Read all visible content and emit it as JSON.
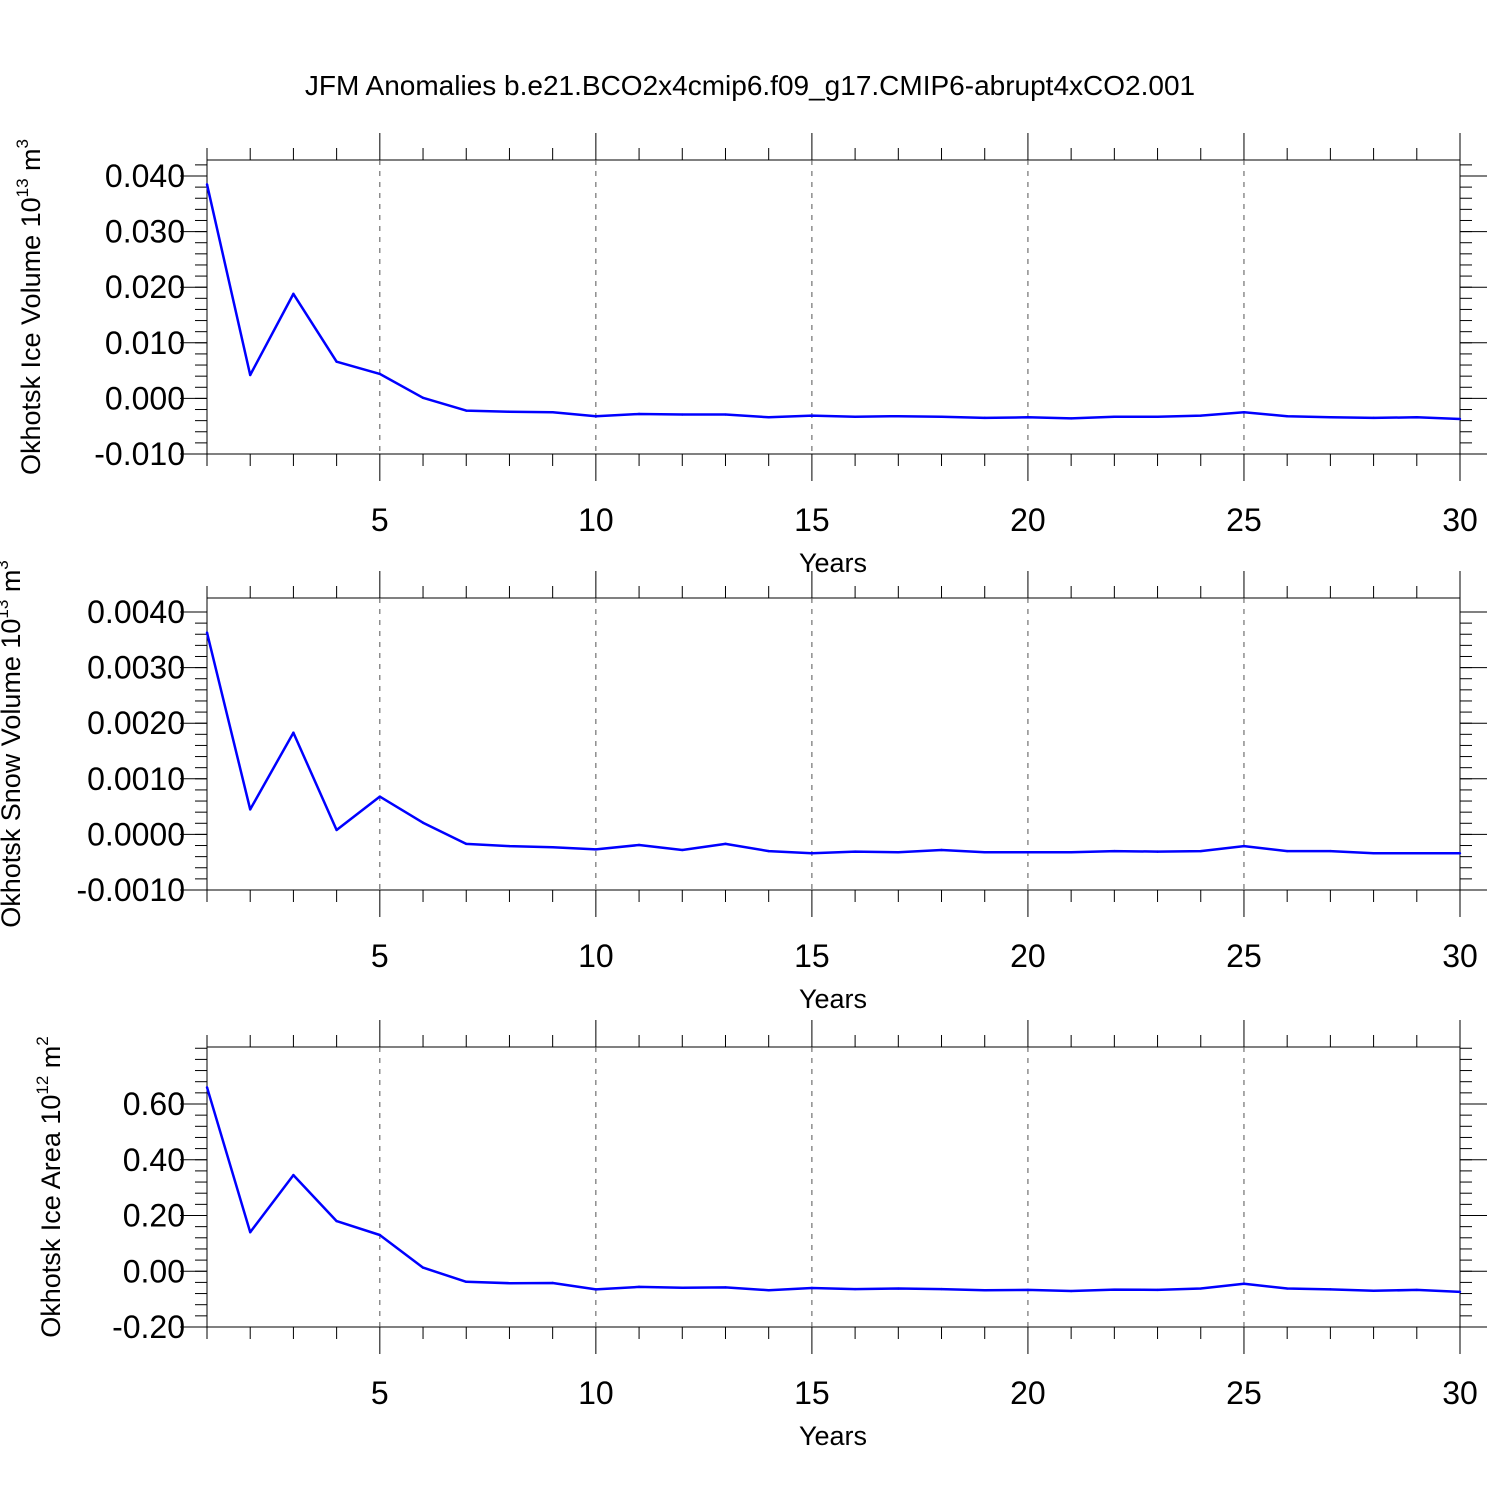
{
  "figure_title": "JFM Anomalies b.e21.BCO2x4cmip6.f09_g17.CMIP6-abrupt4xCO2.001",
  "colors": {
    "line": "#0000ff",
    "axis": "#000000",
    "grid": "#555555"
  },
  "chart_data": [
    {
      "type": "line",
      "title": "",
      "xlabel": "Years",
      "ylabel": "Okhotsk Ice Volume 10",
      "ylabel_exp": "13",
      "ylabel_unit": " m",
      "ylabel_unit_exp": "3",
      "xlim": [
        1,
        30
      ],
      "ylim": [
        -0.01,
        0.045
      ],
      "xticks": [
        5,
        10,
        15,
        20,
        25,
        30
      ],
      "xtick_labels": [
        "5",
        "10",
        "15",
        "20",
        "25",
        "30"
      ],
      "yticks": [
        -0.01,
        0.0,
        0.01,
        0.02,
        0.03,
        0.04
      ],
      "ytick_labels": [
        "-0.010",
        "0.000",
        "0.010",
        "0.020",
        "0.030",
        "0.040"
      ],
      "grid": "vertical dashed at major x ticks",
      "x": [
        1,
        2,
        3,
        4,
        5,
        6,
        7,
        8,
        9,
        10,
        11,
        12,
        13,
        14,
        15,
        16,
        17,
        18,
        19,
        20,
        21,
        22,
        23,
        24,
        25,
        26,
        27,
        28,
        29,
        30
      ],
      "values": [
        0.0385,
        0.0042,
        0.0188,
        0.0066,
        0.0044,
        0.0001,
        -0.0022,
        -0.0024,
        -0.0025,
        -0.0032,
        -0.0028,
        -0.0029,
        -0.0029,
        -0.0034,
        -0.0031,
        -0.0033,
        -0.0032,
        -0.0033,
        -0.0035,
        -0.0034,
        -0.0036,
        -0.0033,
        -0.0033,
        -0.0031,
        -0.0025,
        -0.0032,
        -0.0034,
        -0.0035,
        -0.0034,
        -0.0037
      ]
    },
    {
      "type": "line",
      "title": "",
      "xlabel": "Years",
      "ylabel": "Okhotsk Snow Volume 10",
      "ylabel_exp": "13",
      "ylabel_unit": " m",
      "ylabel_unit_exp": "3",
      "xlim": [
        1,
        30
      ],
      "ylim": [
        -0.001,
        0.004
      ],
      "xticks": [
        5,
        10,
        15,
        20,
        25,
        30
      ],
      "xtick_labels": [
        "5",
        "10",
        "15",
        "20",
        "25",
        "30"
      ],
      "yticks": [
        -0.001,
        0.0,
        0.001,
        0.002,
        0.003,
        0.004
      ],
      "ytick_labels": [
        "-0.0010",
        "0.0000",
        "0.0010",
        "0.0020",
        "0.0030",
        "0.0040"
      ],
      "grid": "vertical dashed at major x ticks",
      "x": [
        1,
        2,
        3,
        4,
        5,
        6,
        7,
        8,
        9,
        10,
        11,
        12,
        13,
        14,
        15,
        16,
        17,
        18,
        19,
        20,
        21,
        22,
        23,
        24,
        25,
        26,
        27,
        28,
        29,
        30
      ],
      "values": [
        0.00363,
        0.00045,
        0.00183,
        8e-05,
        0.00068,
        0.00021,
        -0.00017,
        -0.00021,
        -0.00023,
        -0.00027,
        -0.00019,
        -0.00028,
        -0.00017,
        -0.0003,
        -0.00034,
        -0.00031,
        -0.00032,
        -0.00028,
        -0.00032,
        -0.00032,
        -0.00032,
        -0.0003,
        -0.00031,
        -0.0003,
        -0.00021,
        -0.0003,
        -0.0003,
        -0.00034,
        -0.00034,
        -0.00034
      ]
    },
    {
      "type": "line",
      "title": "",
      "xlabel": "Years",
      "ylabel": "Okhotsk Ice Area 10",
      "ylabel_exp": "12",
      "ylabel_unit": " m",
      "ylabel_unit_exp": "2",
      "xlim": [
        1,
        30
      ],
      "ylim": [
        -0.2,
        0.8
      ],
      "xticks": [
        5,
        10,
        15,
        20,
        25,
        30
      ],
      "xtick_labels": [
        "5",
        "10",
        "15",
        "20",
        "25",
        "30"
      ],
      "yticks": [
        -0.2,
        0.0,
        0.2,
        0.4,
        0.6
      ],
      "ytick_labels": [
        "-0.20",
        "0.00",
        "0.20",
        "0.40",
        "0.60"
      ],
      "grid": "vertical dashed at major x ticks",
      "x": [
        1,
        2,
        3,
        4,
        5,
        6,
        7,
        8,
        9,
        10,
        11,
        12,
        13,
        14,
        15,
        16,
        17,
        18,
        19,
        20,
        21,
        22,
        23,
        24,
        25,
        26,
        27,
        28,
        29,
        30
      ],
      "values": [
        0.66,
        0.14,
        0.345,
        0.18,
        0.13,
        0.013,
        -0.038,
        -0.043,
        -0.042,
        -0.065,
        -0.056,
        -0.059,
        -0.058,
        -0.068,
        -0.06,
        -0.064,
        -0.062,
        -0.064,
        -0.068,
        -0.067,
        -0.071,
        -0.066,
        -0.067,
        -0.062,
        -0.045,
        -0.062,
        -0.065,
        -0.07,
        -0.067,
        -0.074
      ]
    }
  ]
}
